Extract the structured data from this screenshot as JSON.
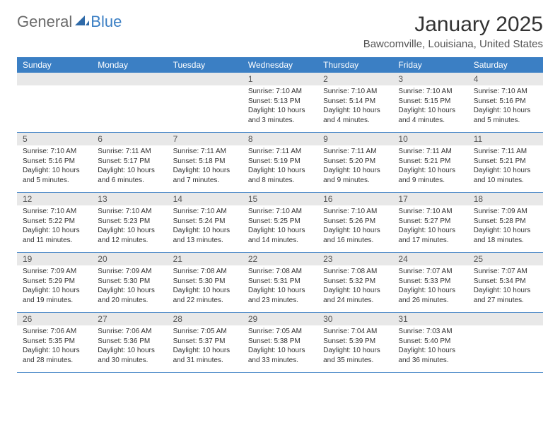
{
  "logo": {
    "text1": "General",
    "text2": "Blue"
  },
  "title": "January 2025",
  "location": "Bawcomville, Louisiana, United States",
  "day_headers": [
    "Sunday",
    "Monday",
    "Tuesday",
    "Wednesday",
    "Thursday",
    "Friday",
    "Saturday"
  ],
  "colors": {
    "header_bg": "#3b7fc4",
    "header_text": "#ffffff",
    "daynum_bg": "#e8e8e8",
    "daynum_text": "#555555",
    "body_text": "#333333",
    "row_border": "#3b7fc4"
  },
  "weeks": [
    [
      {
        "n": "",
        "sr": "",
        "ss": "",
        "dl": ""
      },
      {
        "n": "",
        "sr": "",
        "ss": "",
        "dl": ""
      },
      {
        "n": "",
        "sr": "",
        "ss": "",
        "dl": ""
      },
      {
        "n": "1",
        "sr": "Sunrise: 7:10 AM",
        "ss": "Sunset: 5:13 PM",
        "dl": "Daylight: 10 hours and 3 minutes."
      },
      {
        "n": "2",
        "sr": "Sunrise: 7:10 AM",
        "ss": "Sunset: 5:14 PM",
        "dl": "Daylight: 10 hours and 4 minutes."
      },
      {
        "n": "3",
        "sr": "Sunrise: 7:10 AM",
        "ss": "Sunset: 5:15 PM",
        "dl": "Daylight: 10 hours and 4 minutes."
      },
      {
        "n": "4",
        "sr": "Sunrise: 7:10 AM",
        "ss": "Sunset: 5:16 PM",
        "dl": "Daylight: 10 hours and 5 minutes."
      }
    ],
    [
      {
        "n": "5",
        "sr": "Sunrise: 7:10 AM",
        "ss": "Sunset: 5:16 PM",
        "dl": "Daylight: 10 hours and 5 minutes."
      },
      {
        "n": "6",
        "sr": "Sunrise: 7:11 AM",
        "ss": "Sunset: 5:17 PM",
        "dl": "Daylight: 10 hours and 6 minutes."
      },
      {
        "n": "7",
        "sr": "Sunrise: 7:11 AM",
        "ss": "Sunset: 5:18 PM",
        "dl": "Daylight: 10 hours and 7 minutes."
      },
      {
        "n": "8",
        "sr": "Sunrise: 7:11 AM",
        "ss": "Sunset: 5:19 PM",
        "dl": "Daylight: 10 hours and 8 minutes."
      },
      {
        "n": "9",
        "sr": "Sunrise: 7:11 AM",
        "ss": "Sunset: 5:20 PM",
        "dl": "Daylight: 10 hours and 9 minutes."
      },
      {
        "n": "10",
        "sr": "Sunrise: 7:11 AM",
        "ss": "Sunset: 5:21 PM",
        "dl": "Daylight: 10 hours and 9 minutes."
      },
      {
        "n": "11",
        "sr": "Sunrise: 7:11 AM",
        "ss": "Sunset: 5:21 PM",
        "dl": "Daylight: 10 hours and 10 minutes."
      }
    ],
    [
      {
        "n": "12",
        "sr": "Sunrise: 7:10 AM",
        "ss": "Sunset: 5:22 PM",
        "dl": "Daylight: 10 hours and 11 minutes."
      },
      {
        "n": "13",
        "sr": "Sunrise: 7:10 AM",
        "ss": "Sunset: 5:23 PM",
        "dl": "Daylight: 10 hours and 12 minutes."
      },
      {
        "n": "14",
        "sr": "Sunrise: 7:10 AM",
        "ss": "Sunset: 5:24 PM",
        "dl": "Daylight: 10 hours and 13 minutes."
      },
      {
        "n": "15",
        "sr": "Sunrise: 7:10 AM",
        "ss": "Sunset: 5:25 PM",
        "dl": "Daylight: 10 hours and 14 minutes."
      },
      {
        "n": "16",
        "sr": "Sunrise: 7:10 AM",
        "ss": "Sunset: 5:26 PM",
        "dl": "Daylight: 10 hours and 16 minutes."
      },
      {
        "n": "17",
        "sr": "Sunrise: 7:10 AM",
        "ss": "Sunset: 5:27 PM",
        "dl": "Daylight: 10 hours and 17 minutes."
      },
      {
        "n": "18",
        "sr": "Sunrise: 7:09 AM",
        "ss": "Sunset: 5:28 PM",
        "dl": "Daylight: 10 hours and 18 minutes."
      }
    ],
    [
      {
        "n": "19",
        "sr": "Sunrise: 7:09 AM",
        "ss": "Sunset: 5:29 PM",
        "dl": "Daylight: 10 hours and 19 minutes."
      },
      {
        "n": "20",
        "sr": "Sunrise: 7:09 AM",
        "ss": "Sunset: 5:30 PM",
        "dl": "Daylight: 10 hours and 20 minutes."
      },
      {
        "n": "21",
        "sr": "Sunrise: 7:08 AM",
        "ss": "Sunset: 5:30 PM",
        "dl": "Daylight: 10 hours and 22 minutes."
      },
      {
        "n": "22",
        "sr": "Sunrise: 7:08 AM",
        "ss": "Sunset: 5:31 PM",
        "dl": "Daylight: 10 hours and 23 minutes."
      },
      {
        "n": "23",
        "sr": "Sunrise: 7:08 AM",
        "ss": "Sunset: 5:32 PM",
        "dl": "Daylight: 10 hours and 24 minutes."
      },
      {
        "n": "24",
        "sr": "Sunrise: 7:07 AM",
        "ss": "Sunset: 5:33 PM",
        "dl": "Daylight: 10 hours and 26 minutes."
      },
      {
        "n": "25",
        "sr": "Sunrise: 7:07 AM",
        "ss": "Sunset: 5:34 PM",
        "dl": "Daylight: 10 hours and 27 minutes."
      }
    ],
    [
      {
        "n": "26",
        "sr": "Sunrise: 7:06 AM",
        "ss": "Sunset: 5:35 PM",
        "dl": "Daylight: 10 hours and 28 minutes."
      },
      {
        "n": "27",
        "sr": "Sunrise: 7:06 AM",
        "ss": "Sunset: 5:36 PM",
        "dl": "Daylight: 10 hours and 30 minutes."
      },
      {
        "n": "28",
        "sr": "Sunrise: 7:05 AM",
        "ss": "Sunset: 5:37 PM",
        "dl": "Daylight: 10 hours and 31 minutes."
      },
      {
        "n": "29",
        "sr": "Sunrise: 7:05 AM",
        "ss": "Sunset: 5:38 PM",
        "dl": "Daylight: 10 hours and 33 minutes."
      },
      {
        "n": "30",
        "sr": "Sunrise: 7:04 AM",
        "ss": "Sunset: 5:39 PM",
        "dl": "Daylight: 10 hours and 35 minutes."
      },
      {
        "n": "31",
        "sr": "Sunrise: 7:03 AM",
        "ss": "Sunset: 5:40 PM",
        "dl": "Daylight: 10 hours and 36 minutes."
      },
      {
        "n": "",
        "sr": "",
        "ss": "",
        "dl": ""
      }
    ]
  ]
}
